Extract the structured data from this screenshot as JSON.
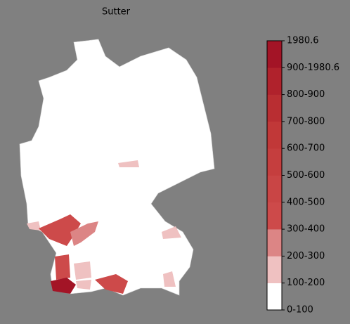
{
  "title": "Sutter",
  "legend": {
    "labels": [
      "0-100",
      "100-200",
      "200-300",
      "300-400",
      "400-500",
      "500-600",
      "600-700",
      "700-800",
      "800-900",
      "900-1980.6",
      "1980.6"
    ],
    "colors": [
      "#ffffff",
      "#efc1c1",
      "#dc8585",
      "#cd4a4a",
      "#c94545",
      "#c53e3e",
      "#c13838",
      "#b92e32",
      "#b0222c",
      "#a31426"
    ]
  }
}
